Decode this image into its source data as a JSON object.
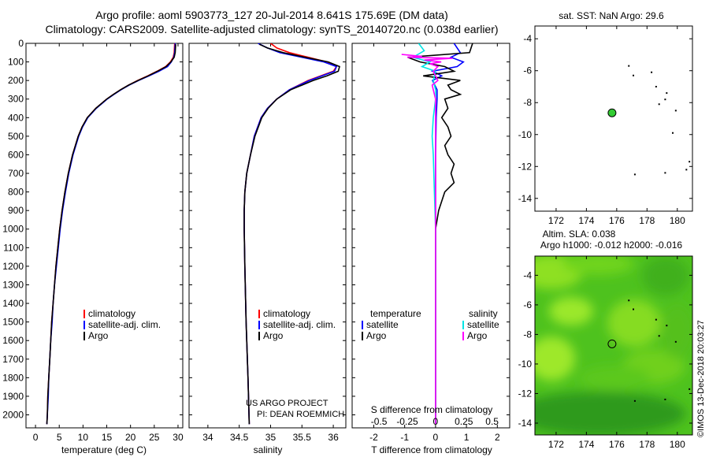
{
  "header": {
    "line1": "Argo profile: aoml 5903773_127 20-Jul-2014 8.641S 175.69E (DM data)",
    "line2": "Climatology: CARS2009. Satellite-adjusted climatology: synTS_20140720.nc (0.038d earlier)"
  },
  "credit": {
    "project": "US ARGO PROJECT",
    "pi": "PI: DEAN ROEMMICH"
  },
  "watermark": "©IMOS 13-Dec-2018 20:03:27",
  "colors": {
    "clim": "#ff0000",
    "sat": "#0000ff",
    "argo": "#000000",
    "sal_sat": "#00e5e5",
    "sal_argo": "#ff00ff",
    "marker": "#33cc33"
  },
  "chart_data": [
    {
      "id": "temperature",
      "type": "line",
      "xlabel": "temperature (deg C)",
      "ylabel": "",
      "xlim": [
        -2,
        31
      ],
      "ylim": [
        2070,
        0
      ],
      "xticks": [
        0,
        5,
        10,
        15,
        20,
        25,
        30
      ],
      "yticks": [
        0,
        100,
        200,
        300,
        400,
        500,
        600,
        700,
        800,
        900,
        1000,
        1100,
        1200,
        1300,
        1400,
        1500,
        1600,
        1700,
        1800,
        1900,
        2000
      ],
      "legend": [
        "climatology",
        "satellite-adj. clim.",
        "Argo"
      ],
      "series": [
        {
          "name": "climatology",
          "color": "#ff0000",
          "depth": [
            0,
            50,
            75,
            100,
            125,
            150,
            175,
            200,
            225,
            250,
            275,
            300,
            350,
            400,
            450,
            500,
            600,
            700,
            800,
            900,
            1000,
            1100,
            1200,
            1300,
            1400,
            1500,
            1600,
            1700,
            1800,
            1900,
            2000,
            2050
          ],
          "values": [
            29.3,
            29.2,
            29.0,
            28.4,
            27.4,
            25.6,
            23.6,
            21.5,
            19.6,
            17.9,
            16.4,
            15.0,
            12.7,
            10.9,
            9.8,
            9.0,
            7.8,
            6.9,
            6.2,
            5.6,
            5.1,
            4.7,
            4.3,
            4.0,
            3.7,
            3.4,
            3.2,
            3.0,
            2.8,
            2.6,
            2.5,
            2.4
          ]
        },
        {
          "name": "satellite-adj. clim.",
          "color": "#0000ff",
          "depth": [
            0,
            50,
            75,
            100,
            125,
            150,
            175,
            200,
            225,
            250,
            275,
            300,
            350,
            400,
            450,
            500,
            600,
            700,
            800,
            900,
            1000,
            1100,
            1200,
            1300,
            1400,
            1500,
            1600,
            1700,
            1800,
            1900,
            2000,
            2050
          ],
          "values": [
            29.4,
            29.3,
            29.1,
            28.6,
            27.8,
            26.0,
            23.9,
            21.7,
            19.7,
            18.0,
            16.5,
            15.1,
            12.8,
            11.0,
            9.9,
            9.1,
            7.9,
            7.0,
            6.3,
            5.7,
            5.2,
            4.8,
            4.4,
            4.0,
            3.7,
            3.5,
            3.2,
            3.0,
            2.8,
            2.7,
            2.5,
            2.4
          ]
        },
        {
          "name": "Argo",
          "color": "#000000",
          "depth": [
            5,
            50,
            75,
            100,
            125,
            150,
            175,
            200,
            225,
            250,
            275,
            300,
            350,
            400,
            450,
            500,
            600,
            700,
            800,
            900,
            1000,
            1100,
            1200,
            1300,
            1400,
            1500,
            1600,
            1700,
            1800,
            1900,
            2000,
            2050
          ],
          "values": [
            29.5,
            29.4,
            29.2,
            28.5,
            27.5,
            25.7,
            23.7,
            21.6,
            19.6,
            17.9,
            16.4,
            15.0,
            12.7,
            10.9,
            9.8,
            9.0,
            7.8,
            6.9,
            6.2,
            5.6,
            5.1,
            4.7,
            4.3,
            4.0,
            3.7,
            3.4,
            3.2,
            3.0,
            2.8,
            2.6,
            2.5,
            2.4
          ]
        }
      ]
    },
    {
      "id": "salinity",
      "type": "line",
      "xlabel": "salinity",
      "xlim": [
        33.7,
        36.2
      ],
      "ylim": [
        2070,
        0
      ],
      "xticks": [
        34,
        34.5,
        35,
        35.5,
        36
      ],
      "legend": [
        "climatology",
        "satellite-adj. clim.",
        "Argo"
      ],
      "series": [
        {
          "name": "climatology",
          "color": "#ff0000",
          "depth": [
            0,
            25,
            50,
            75,
            100,
            125,
            150,
            175,
            200,
            250,
            300,
            350,
            400,
            500,
            600,
            700,
            800,
            900,
            1000,
            1200,
            1500,
            1800,
            2050
          ],
          "values": [
            35.0,
            35.1,
            35.3,
            35.6,
            35.9,
            36.05,
            36.0,
            35.8,
            35.6,
            35.3,
            35.1,
            34.95,
            34.85,
            34.74,
            34.68,
            34.62,
            34.59,
            34.58,
            34.58,
            34.59,
            34.61,
            34.64,
            34.66
          ]
        },
        {
          "name": "satellite-adj. clim.",
          "color": "#0000ff",
          "depth": [
            0,
            25,
            50,
            75,
            100,
            125,
            150,
            175,
            200,
            250,
            300,
            350,
            400,
            500,
            600,
            700,
            800,
            900,
            1000,
            1200,
            1500,
            1800,
            2050
          ],
          "values": [
            34.8,
            34.95,
            35.15,
            35.5,
            35.85,
            36.05,
            36.02,
            35.82,
            35.62,
            35.3,
            35.1,
            34.95,
            34.85,
            34.74,
            34.68,
            34.62,
            34.59,
            34.58,
            34.58,
            34.59,
            34.61,
            34.64,
            34.66
          ]
        },
        {
          "name": "Argo",
          "color": "#000000",
          "depth": [
            5,
            25,
            50,
            75,
            100,
            125,
            150,
            175,
            200,
            250,
            300,
            350,
            400,
            500,
            600,
            700,
            800,
            900,
            1000,
            1200,
            1500,
            1800,
            2050
          ],
          "values": [
            34.82,
            34.95,
            35.2,
            35.55,
            35.92,
            36.1,
            36.08,
            35.9,
            35.68,
            35.32,
            35.1,
            34.96,
            34.86,
            34.75,
            34.68,
            34.62,
            34.59,
            34.58,
            34.58,
            34.59,
            34.61,
            34.64,
            34.66
          ]
        }
      ]
    },
    {
      "id": "differences",
      "type": "line",
      "xlabel": "T difference from climatology",
      "xlabel_top": "S difference from climatology",
      "xlim": [
        -2.7,
        2.4
      ],
      "ylim": [
        2070,
        0
      ],
      "xticks": [
        -2,
        -1,
        0,
        1,
        2
      ],
      "xticklabels": [
        "-2",
        "-1",
        "0",
        "1",
        "2"
      ],
      "sticks": [
        -0.5,
        -0.25,
        0,
        0.25,
        0.5
      ],
      "sticklabels": [
        "-0.5",
        "-0.25",
        "0",
        "0.25",
        "0.5"
      ],
      "legend_left_title": "temperature",
      "legend_right_title": "salinity",
      "legend": [
        "satellite",
        "Argo",
        "satellite",
        "Argo"
      ],
      "series": [
        {
          "name": "T satellite",
          "color": "#0000ff",
          "depth": [
            0,
            50,
            75,
            100,
            125,
            150,
            175,
            200,
            250,
            300,
            400,
            600,
            800,
            1000,
            1500,
            2000,
            2050
          ],
          "values": [
            0.6,
            0.8,
            0.5,
            0.9,
            0.7,
            -0.1,
            0.2,
            -0.1,
            0.05,
            0.05,
            0.02,
            0.0,
            0.0,
            0.0,
            0.0,
            0.0,
            0.0
          ]
        },
        {
          "name": "T Argo",
          "color": "#000000",
          "depth": [
            0,
            50,
            75,
            100,
            125,
            150,
            175,
            200,
            225,
            250,
            275,
            300,
            350,
            400,
            450,
            500,
            550,
            600,
            650,
            700,
            750,
            800,
            900,
            1000,
            1200,
            1500,
            1800,
            2000,
            2050
          ],
          "values": [
            1.2,
            1.1,
            -0.9,
            -0.5,
            0.3,
            0.6,
            -0.4,
            0.8,
            0.4,
            0.5,
            0.8,
            0.3,
            0.4,
            0.2,
            0.4,
            0.5,
            0.3,
            0.4,
            0.6,
            0.5,
            0.6,
            0.3,
            0.1,
            0.0,
            0.0,
            0.0,
            0.0,
            0.0,
            0.0
          ]
        },
        {
          "name": "S satellite",
          "color": "#00e5e5",
          "depth": [
            0,
            40,
            75,
            100,
            125,
            150,
            200,
            250,
            300,
            400,
            500,
            600,
            800,
            1000,
            1500,
            2000,
            2050
          ],
          "values": [
            -0.15,
            -0.1,
            -0.2,
            -0.05,
            -0.12,
            0.0,
            -0.02,
            0.0,
            0.0,
            -0.02,
            -0.03,
            -0.02,
            -0.01,
            0.0,
            0.0,
            0.0,
            0.0
          ]
        },
        {
          "name": "S Argo",
          "color": "#ff00ff",
          "depth": [
            60,
            70,
            75,
            80,
            90,
            100,
            110,
            125,
            150,
            175,
            200,
            225,
            250,
            300,
            400,
            600,
            1000,
            2050
          ],
          "values": [
            -0.3,
            -0.12,
            -0.25,
            0.15,
            -0.1,
            0.05,
            -0.05,
            0.02,
            -0.02,
            0.0,
            0.02,
            -0.03,
            -0.02,
            0.0,
            0.0,
            0.0,
            0.0,
            0.0
          ]
        }
      ]
    },
    {
      "id": "sst_map",
      "type": "scatter",
      "title": "sat. SST: NaN Argo: 29.6",
      "xlim": [
        170.6,
        181
      ],
      "ylim": [
        -14.8,
        -3.2
      ],
      "xticks": [
        172,
        174,
        176,
        178,
        180
      ],
      "yticks": [
        -4,
        -6,
        -8,
        -10,
        -12,
        -14
      ],
      "float_position": {
        "lon": 175.69,
        "lat": -8.641
      },
      "islands": [
        [
          176.8,
          -5.7
        ],
        [
          177.1,
          -6.3
        ],
        [
          178.3,
          -6.1
        ],
        [
          178.6,
          -7.0
        ],
        [
          179.3,
          -7.4
        ],
        [
          179.2,
          -7.8
        ],
        [
          178.8,
          -8.1
        ],
        [
          179.9,
          -8.5
        ],
        [
          179.7,
          -9.9
        ],
        [
          180.8,
          -11.7
        ],
        [
          180.6,
          -12.2
        ],
        [
          177.2,
          -12.5
        ],
        [
          179.2,
          -12.4
        ]
      ]
    },
    {
      "id": "sla_map",
      "type": "heatmap",
      "title": "Altim. SLA: 0.038",
      "subtitle": "Argo h1000: -0.012 h2000: -0.016",
      "xlim": [
        170.6,
        181
      ],
      "ylim": [
        -14.8,
        -2.7
      ],
      "xticks": [
        172,
        174,
        176,
        178,
        180
      ],
      "yticks": [
        -4,
        -6,
        -8,
        -10,
        -12,
        -14
      ],
      "float_position": {
        "lon": 175.69,
        "lat": -8.641
      },
      "islands": [
        [
          176.8,
          -5.7
        ],
        [
          177.1,
          -6.3
        ],
        [
          178.6,
          -7.0
        ],
        [
          179.3,
          -7.4
        ],
        [
          178.8,
          -8.1
        ],
        [
          179.9,
          -8.5
        ],
        [
          180.8,
          -11.7
        ],
        [
          177.2,
          -12.5
        ],
        [
          179.2,
          -12.4
        ]
      ]
    }
  ]
}
